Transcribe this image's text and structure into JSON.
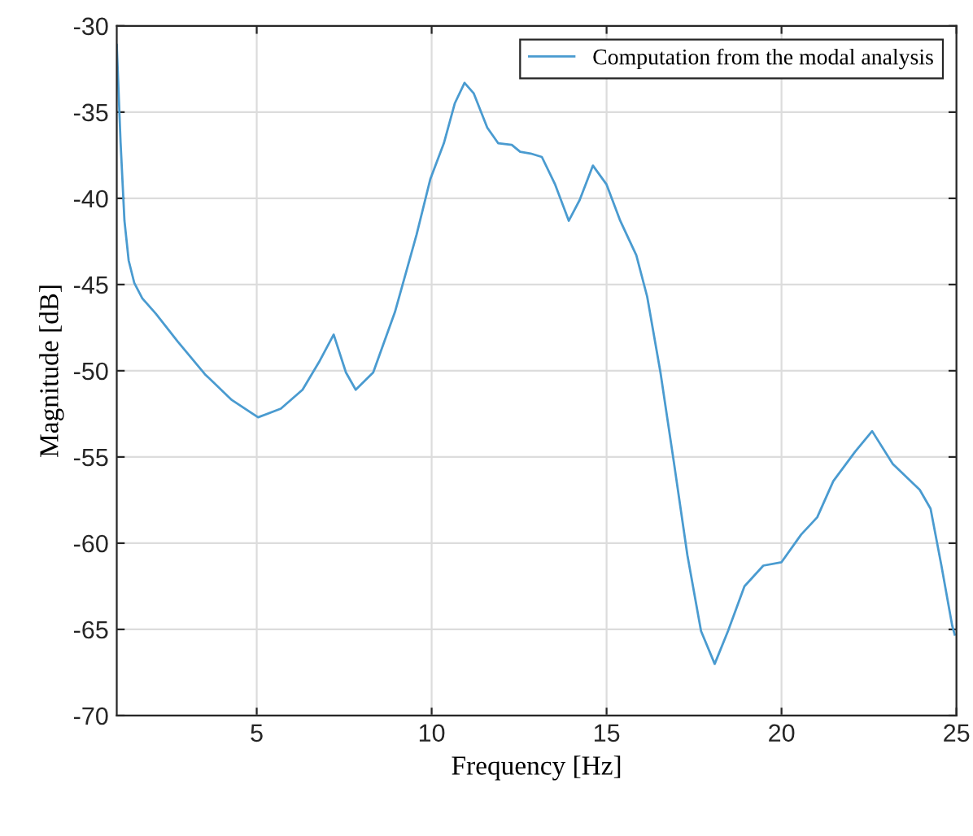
{
  "chart_data": {
    "type": "line",
    "xlabel": "Frequency [Hz]",
    "ylabel": "Magnitude [dB]",
    "xlim": [
      1,
      25
    ],
    "xticks": [
      5,
      10,
      15,
      20,
      25
    ],
    "ylim": [
      -70,
      -30
    ],
    "yticks": [
      -70,
      -65,
      -60,
      -55,
      -50,
      -45,
      -40,
      -35,
      -30
    ],
    "grid": true,
    "legend": "top right",
    "marker": "none",
    "line_style": "solid",
    "x": [
      1,
      1.11,
      1.22,
      1.34,
      1.5,
      1.73,
      2.12,
      2.74,
      3.52,
      4.29,
      5.04,
      5.69,
      6.31,
      6.78,
      7.2,
      7.55,
      7.83,
      8.33,
      8.95,
      9.57,
      9.96,
      10.35,
      10.66,
      10.94,
      11.2,
      11.59,
      11.9,
      12.29,
      12.53,
      12.83,
      13.15,
      13.53,
      13.92,
      14.23,
      14.61,
      15.0,
      15.39,
      15.85,
      16.16,
      16.54,
      16.93,
      17.31,
      17.7,
      18.09,
      18.47,
      18.94,
      19.48,
      20.0,
      20.56,
      21.02,
      21.48,
      22.1,
      22.59,
      23.18,
      23.95,
      24.26,
      24.57,
      24.88,
      24.95
    ],
    "series": [
      {
        "name": "Computation from the modal analysis",
        "color": "#4a9bd0",
        "values": [
          -31.1,
          -36.8,
          -41.3,
          -43.6,
          -44.9,
          -45.8,
          -46.7,
          -48.3,
          -50.2,
          -51.7,
          -52.7,
          -52.2,
          -51.1,
          -49.5,
          -47.9,
          -50.1,
          -51.1,
          -50.1,
          -46.6,
          -42.1,
          -38.9,
          -36.8,
          -34.5,
          -33.3,
          -33.9,
          -35.9,
          -36.8,
          -36.9,
          -37.3,
          -37.4,
          -37.6,
          -39.2,
          -41.3,
          -40.1,
          -38.1,
          -39.2,
          -41.3,
          -43.3,
          -45.7,
          -50.1,
          -55.4,
          -60.7,
          -65.1,
          -67.0,
          -65.1,
          -62.5,
          -61.3,
          -61.1,
          -59.5,
          -58.5,
          -56.4,
          -54.7,
          -53.5,
          -55.4,
          -56.9,
          -58.0,
          -61.3,
          -64.8,
          -65.3
        ]
      }
    ]
  }
}
